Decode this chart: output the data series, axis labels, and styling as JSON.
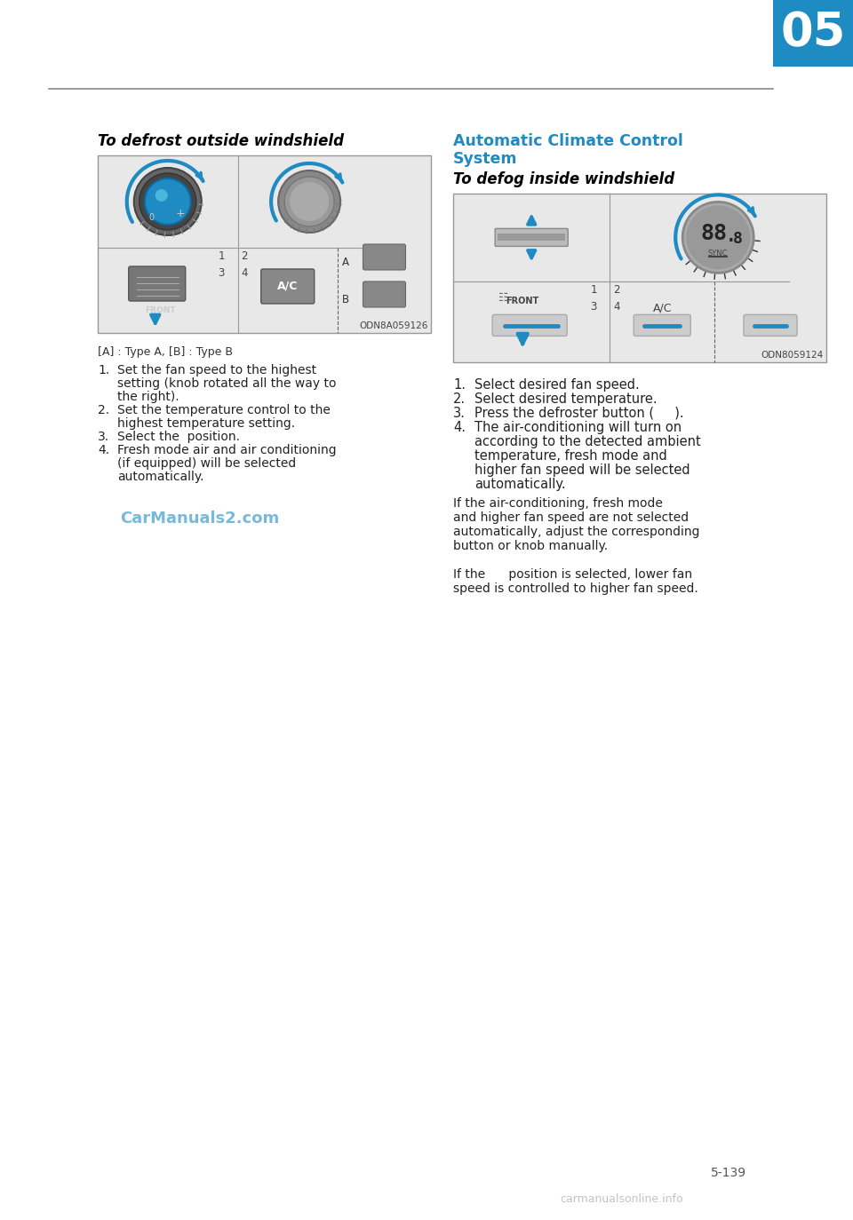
{
  "page_number": "5-139",
  "chapter_number": "05",
  "chapter_bg_color": "#1e8bc3",
  "chapter_text_color": "#ffffff",
  "header_line_color": "#888888",
  "background_color": "#ffffff",
  "left_section_title": "To defrost outside windshield",
  "left_section_title_color": "#000000",
  "left_image_label": "ODN8A059126",
  "left_type_note": "[A] : Type A, [B] : Type B",
  "left_instructions": [
    "Set the fan speed to the highest",
    "setting (knob rotated all the way to",
    "the right).",
    "Set the temperature control to the",
    "highest temperature setting.",
    "Select the  position.",
    "Fresh mode air and air conditioning",
    "(if equipped) will be selected",
    "automatically."
  ],
  "left_instr_numbers": [
    1,
    0,
    0,
    2,
    0,
    3,
    4,
    0,
    0
  ],
  "right_section_title1": "Automatic Climate Control",
  "right_section_title1b": "System",
  "right_section_title2": "To defog inside windshield",
  "right_section_title1_color": "#1e8bc3",
  "right_section_title2_color": "#000000",
  "right_image_label": "ODN8059124",
  "right_instructions": [
    "Select desired fan speed.",
    "Select desired temperature.",
    "Press the defroster button (     ).",
    "The air-conditioning will turn on",
    "according to the detected ambient",
    "temperature, fresh mode and",
    "higher fan speed will be selected",
    "automatically."
  ],
  "right_instr_numbers": [
    1,
    2,
    3,
    4,
    0,
    0,
    0,
    0
  ],
  "right_extra_para": [
    "If the air-conditioning, fresh mode",
    "and higher fan speed are not selected",
    "automatically, adjust the corresponding",
    "button or knob manually.",
    "",
    "If the      position is selected, lower fan",
    "speed is controlled to higher fan speed."
  ],
  "watermark_text": "CarManuals2.com",
  "watermark_color": "#1e8bc3",
  "footer_watermark": "carmanualsonline.info",
  "footer_watermark_color": "#aaaaaa",
  "diagram_bg_color": "#e8e8e8",
  "diagram_border_color": "#999999"
}
